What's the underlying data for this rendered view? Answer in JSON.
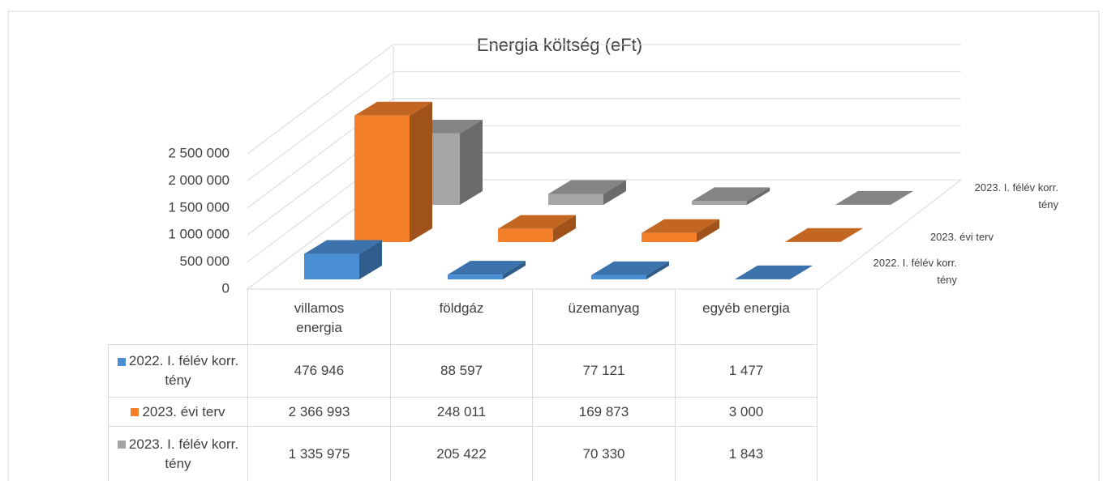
{
  "chart_data": {
    "type": "bar3d",
    "title": "Energia költség (eFt)",
    "categories": [
      "villamos energia",
      "földgáz",
      "üzemanyag",
      "egyéb energia"
    ],
    "series": [
      {
        "name": "2022. I. félév korr. tény",
        "color": "#4a8fd6",
        "values": [
          476946,
          88597,
          77121,
          1477
        ],
        "value_labels": [
          "476 946",
          "88 597",
          "77 121",
          "1 477"
        ]
      },
      {
        "name": "2023. évi terv",
        "color": "#f47f2a",
        "values": [
          2366993,
          248011,
          169873,
          3000
        ],
        "value_labels": [
          "2 366 993",
          "248 011",
          "169 873",
          "3 000"
        ]
      },
      {
        "name": "2023. I. félév korr. tény",
        "color": "#a5a5a5",
        "values": [
          1335975,
          205422,
          70330,
          1843
        ],
        "value_labels": [
          "1 335 975",
          "205 422",
          "70 330",
          "1 843"
        ]
      }
    ],
    "ylim": [
      0,
      2500000
    ],
    "yticks": [
      0,
      {
        "value": 500000,
        "label": "500 000"
      },
      {
        "value": 1000000,
        "label": "1 000 000"
      },
      {
        "value": 1500000,
        "label": "1 500 000"
      },
      {
        "value": 2000000,
        "label": "2 000 000"
      },
      {
        "value": 2500000,
        "label": "2 500 000"
      }
    ],
    "grid": true,
    "data_table": true
  }
}
